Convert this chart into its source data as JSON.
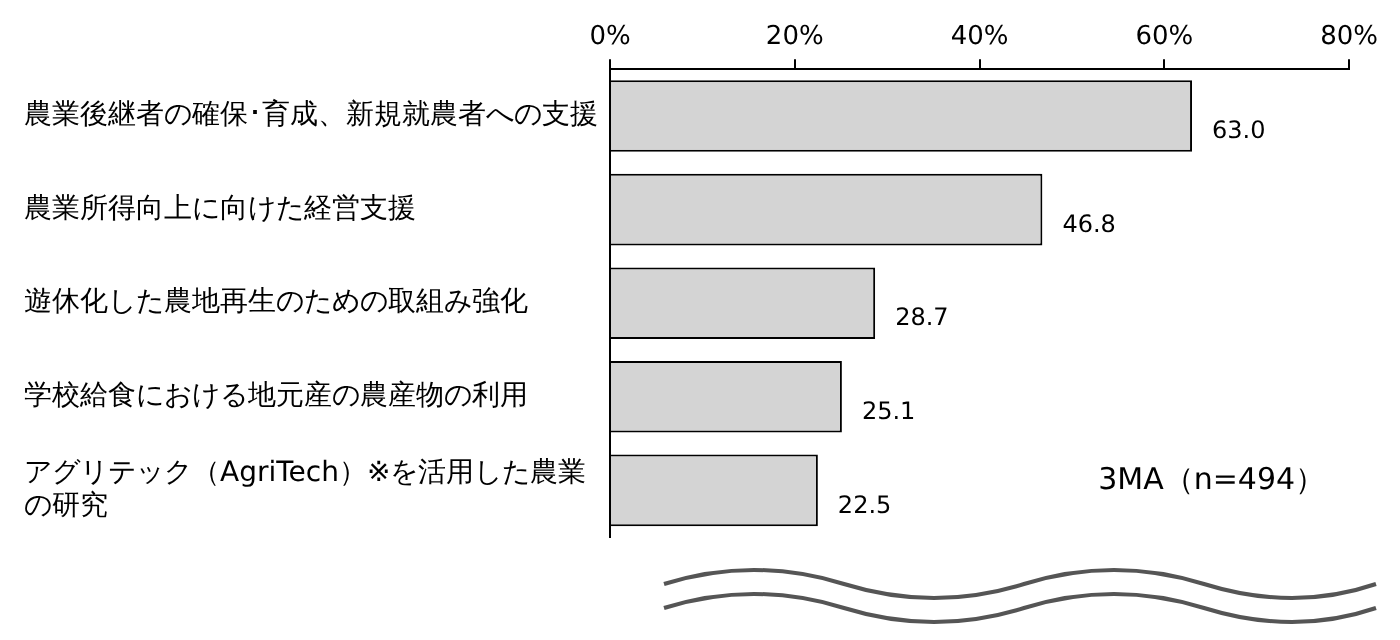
{
  "chart_data": {
    "type": "bar",
    "orientation": "horizontal",
    "categories": [
      "農業後継者の確保･育成、新規就農者への支援",
      "農業所得向上に向けた経営支援",
      "遊休化した農地再生のための取組み強化",
      "学校給食における地元産の農産物の利用",
      "アグリテック（AgriTech）※を活用した農業の研究"
    ],
    "values": [
      63.0,
      46.8,
      28.7,
      25.1,
      22.5
    ],
    "color": "#d4d4d4",
    "xlim": [
      0,
      80
    ],
    "xticks": [
      {
        "value": 0,
        "label": "0%"
      },
      {
        "value": 20,
        "label": "20%"
      },
      {
        "value": 40,
        "label": "40%"
      },
      {
        "value": 60,
        "label": "60%"
      },
      {
        "value": 80,
        "label": "80%"
      }
    ],
    "value_labels": [
      "63.0",
      "46.8",
      "28.7",
      "25.1",
      "22.5"
    ],
    "annotations": [
      "3MA（n=494）"
    ],
    "grid": false,
    "legend": false
  }
}
